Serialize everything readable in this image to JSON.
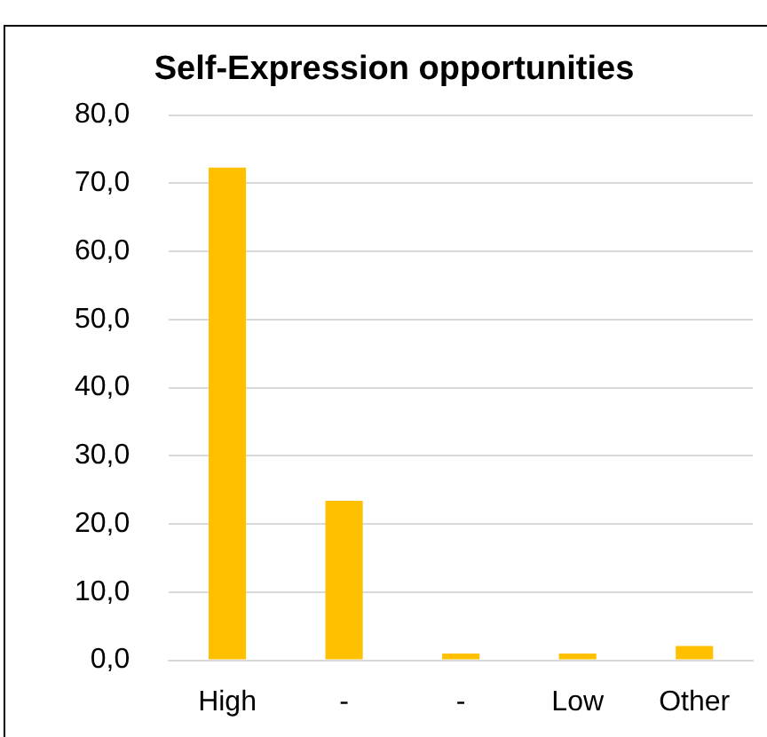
{
  "chart_data": {
    "type": "bar",
    "title": "Self-Expression opportunities",
    "categories": [
      "High",
      "-",
      "-",
      "Low",
      "Other"
    ],
    "values": [
      72.3,
      23.4,
      1.0,
      1.0,
      2.1
    ],
    "color": "#ffc000",
    "ylim": [
      0,
      80
    ],
    "yticks": [
      {
        "value": 0,
        "label": "0,0"
      },
      {
        "value": 10,
        "label": "10,0"
      },
      {
        "value": 20,
        "label": "20,0"
      },
      {
        "value": 30,
        "label": "30,0"
      },
      {
        "value": 40,
        "label": "40,0"
      },
      {
        "value": 50,
        "label": "50,0"
      },
      {
        "value": 60,
        "label": "60,0"
      },
      {
        "value": 70,
        "label": "70,0"
      },
      {
        "value": 80,
        "label": "80,0"
      }
    ],
    "grid": "y",
    "legend": false
  }
}
